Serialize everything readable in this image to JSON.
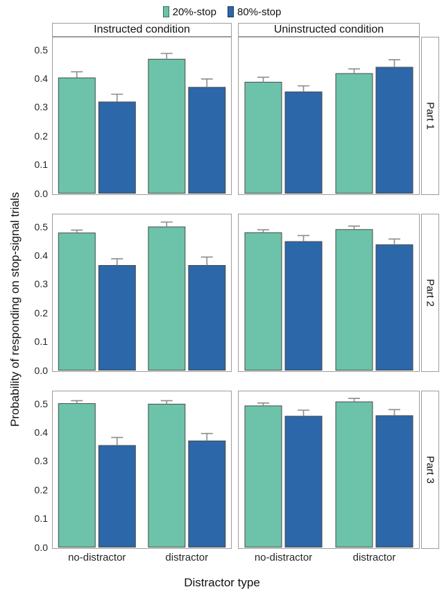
{
  "chart_data": {
    "type": "bar",
    "grouped": true,
    "legend_position": "top",
    "error_bars": "upper",
    "xlabel": "Distractor type",
    "ylabel": "Probability of responding on stop-signal trials",
    "categories": [
      "no-distractor",
      "distractor"
    ],
    "y_ticks": [
      "0.0",
      "0.1",
      "0.2",
      "0.3",
      "0.4",
      "0.5"
    ],
    "y_tick_values": [
      0.0,
      0.1,
      0.2,
      0.3,
      0.4,
      0.5
    ],
    "ylim": [
      0,
      0.545
    ],
    "facet_cols": [
      "Instructed condition",
      "Uninstructed condition"
    ],
    "facet_rows": [
      "Part 1",
      "Part 2",
      "Part 3"
    ],
    "series": [
      {
        "name": "20%-stop",
        "color": "#6CC3A9"
      },
      {
        "name": "80%-stop",
        "color": "#2C67A9"
      }
    ],
    "panels": [
      {
        "row": "Part 1",
        "col": "Instructed condition",
        "bars": [
          {
            "category": "no-distractor",
            "series": "20%-stop",
            "value": 0.402,
            "error": 0.021
          },
          {
            "category": "no-distractor",
            "series": "80%-stop",
            "value": 0.318,
            "error": 0.027
          },
          {
            "category": "distractor",
            "series": "20%-stop",
            "value": 0.467,
            "error": 0.02
          },
          {
            "category": "distractor",
            "series": "80%-stop",
            "value": 0.369,
            "error": 0.029
          }
        ]
      },
      {
        "row": "Part 1",
        "col": "Uninstructed condition",
        "bars": [
          {
            "category": "no-distractor",
            "series": "20%-stop",
            "value": 0.387,
            "error": 0.017
          },
          {
            "category": "no-distractor",
            "series": "80%-stop",
            "value": 0.353,
            "error": 0.021
          },
          {
            "category": "distractor",
            "series": "20%-stop",
            "value": 0.417,
            "error": 0.016
          },
          {
            "category": "distractor",
            "series": "80%-stop",
            "value": 0.439,
            "error": 0.026
          }
        ]
      },
      {
        "row": "Part 2",
        "col": "Instructed condition",
        "bars": [
          {
            "category": "no-distractor",
            "series": "20%-stop",
            "value": 0.478,
            "error": 0.01
          },
          {
            "category": "no-distractor",
            "series": "80%-stop",
            "value": 0.365,
            "error": 0.023
          },
          {
            "category": "distractor",
            "series": "20%-stop",
            "value": 0.499,
            "error": 0.017
          },
          {
            "category": "distractor",
            "series": "80%-stop",
            "value": 0.365,
            "error": 0.029
          }
        ]
      },
      {
        "row": "Part 2",
        "col": "Uninstructed condition",
        "bars": [
          {
            "category": "no-distractor",
            "series": "20%-stop",
            "value": 0.479,
            "error": 0.01
          },
          {
            "category": "no-distractor",
            "series": "80%-stop",
            "value": 0.448,
            "error": 0.021
          },
          {
            "category": "distractor",
            "series": "20%-stop",
            "value": 0.49,
            "error": 0.012
          },
          {
            "category": "distractor",
            "series": "80%-stop",
            "value": 0.437,
            "error": 0.02
          }
        ]
      },
      {
        "row": "Part 3",
        "col": "Instructed condition",
        "bars": [
          {
            "category": "no-distractor",
            "series": "20%-stop",
            "value": 0.5,
            "error": 0.01
          },
          {
            "category": "no-distractor",
            "series": "80%-stop",
            "value": 0.354,
            "error": 0.028
          },
          {
            "category": "distractor",
            "series": "20%-stop",
            "value": 0.498,
            "error": 0.012
          },
          {
            "category": "distractor",
            "series": "80%-stop",
            "value": 0.37,
            "error": 0.026
          }
        ]
      },
      {
        "row": "Part 3",
        "col": "Uninstructed condition",
        "bars": [
          {
            "category": "no-distractor",
            "series": "20%-stop",
            "value": 0.492,
            "error": 0.01
          },
          {
            "category": "no-distractor",
            "series": "80%-stop",
            "value": 0.456,
            "error": 0.021
          },
          {
            "category": "distractor",
            "series": "20%-stop",
            "value": 0.506,
            "error": 0.012
          },
          {
            "category": "distractor",
            "series": "80%-stop",
            "value": 0.458,
            "error": 0.021
          }
        ]
      }
    ],
    "style": {
      "panel_border_color": "#9c9c9c",
      "bar_stroke_color": "#4a4a4a",
      "error_bar_color": "#8c8c8c",
      "text_color": "#111111"
    }
  }
}
